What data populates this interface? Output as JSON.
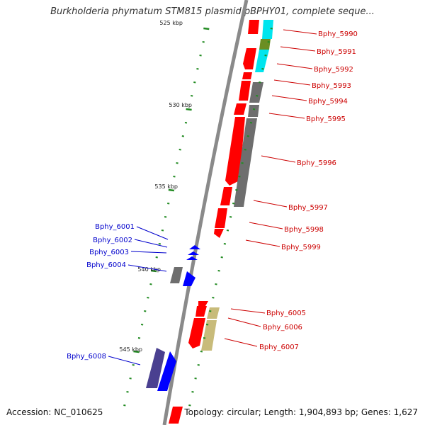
{
  "title": "Burkholderia phymatum STM815 plasmid pBPHY01, complete seque...",
  "footer": {
    "accession": "Accession: NC_010625",
    "topology": "Topology: circular; Length: 1,904,893 bp; Genes: 1,627"
  },
  "colors": {
    "backbone": "#8a8a8a",
    "forward_label": "#cc0000",
    "reverse_label": "#0000cc",
    "tick": "#228b22",
    "red": "#ff0000",
    "blue": "#0000ff",
    "gray": "#6e6e6e",
    "cyan": "#00e5ee",
    "olive": "#6b8e23",
    "khaki": "#c8bb7a",
    "navy": "#4a4090"
  },
  "scale": [
    {
      "label": "525 kbp"
    },
    {
      "label": "530 kbp"
    },
    {
      "label": "535 kbp"
    },
    {
      "label": "540 kbp"
    },
    {
      "label": "545 kbp"
    }
  ],
  "labels": [
    {
      "name": "Bphy_5990",
      "strand": "forward"
    },
    {
      "name": "Bphy_5991",
      "strand": "forward"
    },
    {
      "name": "Bphy_5992",
      "strand": "forward"
    },
    {
      "name": "Bphy_5993",
      "strand": "forward"
    },
    {
      "name": "Bphy_5994",
      "strand": "forward"
    },
    {
      "name": "Bphy_5995",
      "strand": "forward"
    },
    {
      "name": "Bphy_5996",
      "strand": "forward"
    },
    {
      "name": "Bphy_5997",
      "strand": "forward"
    },
    {
      "name": "Bphy_5998",
      "strand": "forward"
    },
    {
      "name": "Bphy_5999",
      "strand": "forward"
    },
    {
      "name": "Bphy_6001",
      "strand": "reverse"
    },
    {
      "name": "Bphy_6002",
      "strand": "reverse"
    },
    {
      "name": "Bphy_6003",
      "strand": "reverse"
    },
    {
      "name": "Bphy_6004",
      "strand": "reverse"
    },
    {
      "name": "Bphy_6005",
      "strand": "forward"
    },
    {
      "name": "Bphy_6006",
      "strand": "forward"
    },
    {
      "name": "Bphy_6007",
      "strand": "forward"
    },
    {
      "name": "Bphy_6008",
      "strand": "reverse"
    }
  ]
}
